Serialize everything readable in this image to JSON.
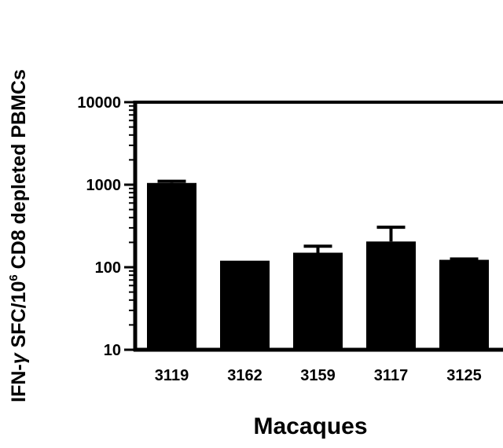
{
  "chart_data": {
    "type": "bar",
    "categories": [
      "3119",
      "3162",
      "3159",
      "3117",
      "3125"
    ],
    "values": [
      1050,
      120,
      150,
      205,
      123
    ],
    "error_upper": [
      1100,
      120,
      180,
      305,
      126
    ],
    "xlabel": "Macaques",
    "ylabel": {
      "prefix": "IFN-",
      "gamma": "γ",
      "mid": " SFC/10",
      "sup": "6",
      "suffix": " CD8 depleted PBMCs"
    },
    "yscale": "log",
    "ylim": [
      10,
      10000
    ],
    "yticks": [
      "10",
      "100",
      "1000",
      "10000"
    ],
    "grid": false,
    "legend": "none",
    "bar_color": "#000000"
  }
}
